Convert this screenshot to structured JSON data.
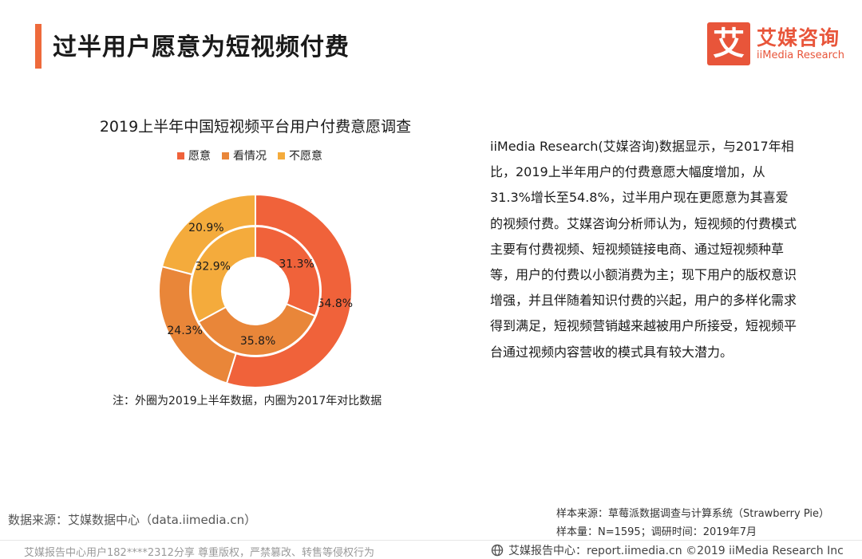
{
  "header": {
    "title": "过半用户愿意为短视频付费",
    "logo_symbol": "艾",
    "logo_cn": "艾媒咨询",
    "logo_en": "iiMedia Research",
    "accent_color": "#ee6a3b"
  },
  "chart_data": {
    "type": "pie",
    "variant": "nested-donut",
    "title": "2019上半年中国短视频平台用户付费意愿调查",
    "categories": [
      "愿意",
      "看情况",
      "不愿意"
    ],
    "colors": [
      "#f0623a",
      "#e98639",
      "#f4ab3c"
    ],
    "series": [
      {
        "ring": "outer",
        "values": [
          54.8,
          24.3,
          20.9
        ],
        "labels": [
          "54.8%",
          "24.3%",
          "20.9%"
        ]
      },
      {
        "ring": "inner",
        "values": [
          31.3,
          35.8,
          32.9
        ],
        "labels": [
          "31.3%",
          "35.8%",
          "32.9%"
        ]
      }
    ],
    "note": "注：外圈为2019上半年数据，内圈为2017年对比数据"
  },
  "analysis": {
    "text": "iiMedia Research(艾媒咨询)数据显示，与2017年相比，2019上半年用户的付费意愿大幅度增加，从31.3%增长至54.8%，过半用户现在更愿意为其喜爱的视频付费。艾媒咨询分析师认为，短视频的付费模式主要有付费视频、短视频链接电商、通过短视频种草等，用户的付费以小额消费为主；现下用户的版权意识增强，并且伴随着知识付费的兴起，用户的多样化需求得到满足，短视频营销越来越被用户所接受，短视频平台通过视频内容营收的模式具有较大潜力。"
  },
  "footer": {
    "data_source": "数据来源：艾媒数据中心（data.iimedia.cn）",
    "sample_source": "样本来源：草莓派数据调查与计算系统（Strawberry Pie）",
    "sample_size": "样本量：N=1595；调研时间：2019年7月",
    "watermark": "艾媒报告中心用户182****2312分享 尊重版权，严禁篡改、转售等侵权行为",
    "report_center": "艾媒报告中心：report.iimedia.cn  ©2019  iiMedia Research  Inc"
  }
}
